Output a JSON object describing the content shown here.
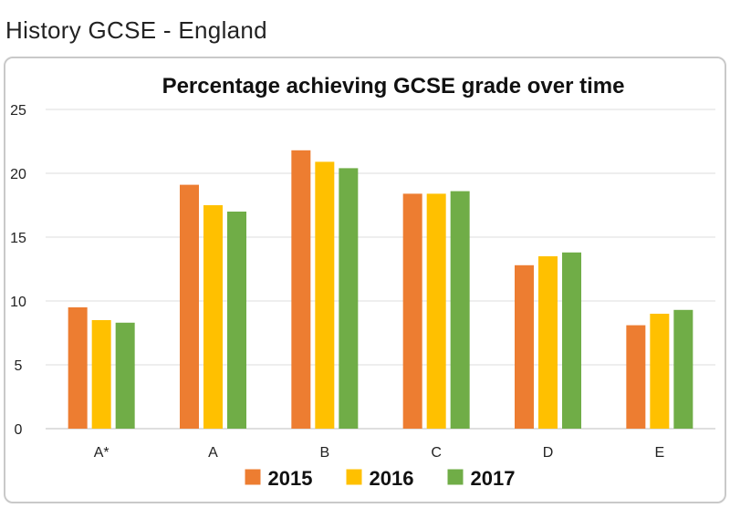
{
  "page": {
    "heading": "History GCSE - England"
  },
  "chart_data": {
    "type": "bar",
    "title": "Percentage achieving GCSE grade over time",
    "xlabel": "",
    "ylabel": "",
    "categories": [
      "A*",
      "A",
      "B",
      "C",
      "D",
      "E"
    ],
    "ylim": [
      0,
      25
    ],
    "yticks": [
      0,
      5,
      10,
      15,
      20,
      25
    ],
    "grid": true,
    "legend_position": "bottom",
    "series": [
      {
        "name": "2015",
        "color": "#ed7d31",
        "values": [
          9.5,
          19.1,
          21.8,
          18.4,
          12.8,
          8.1
        ]
      },
      {
        "name": "2016",
        "color": "#ffc000",
        "values": [
          8.5,
          17.5,
          20.9,
          18.4,
          13.5,
          9.0
        ]
      },
      {
        "name": "2017",
        "color": "#70ad47",
        "values": [
          8.3,
          17.0,
          20.4,
          18.6,
          13.8,
          9.3
        ]
      }
    ]
  }
}
